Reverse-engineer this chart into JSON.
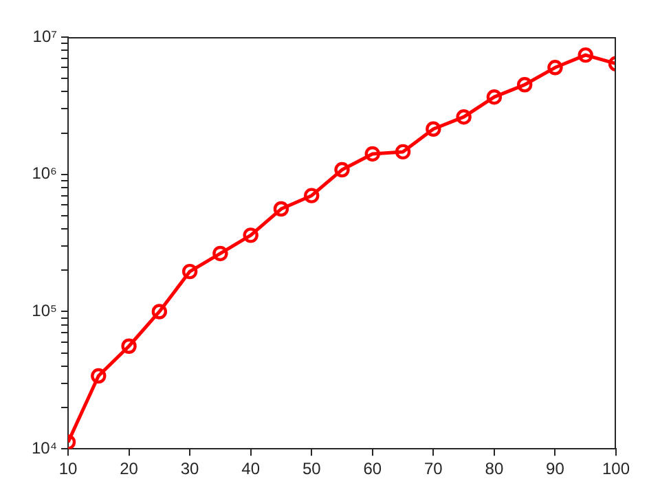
{
  "chart_data": {
    "type": "line",
    "x": [
      10,
      15,
      20,
      25,
      30,
      35,
      40,
      45,
      50,
      55,
      60,
      65,
      70,
      75,
      80,
      85,
      90,
      95,
      100
    ],
    "series": [
      {
        "color": "#ff0000",
        "values": [
          11200,
          34000,
          56000,
          100000,
          196000,
          265000,
          360000,
          560000,
          700000,
          1080000,
          1410000,
          1460000,
          2140000,
          2620000,
          3660000,
          4500000,
          6000000,
          7400000,
          6400000
        ]
      }
    ],
    "xlim": [
      10,
      100
    ],
    "xticks": [
      10,
      20,
      30,
      40,
      50,
      60,
      70,
      80,
      90,
      100
    ],
    "ylim": [
      10000,
      10000000
    ],
    "log": "y",
    "yticks": [
      {
        "value": 10000,
        "label": "10⁴"
      },
      {
        "value": 20000,
        "label": null
      },
      {
        "value": 30000,
        "label": null
      },
      {
        "value": 40000,
        "label": null
      },
      {
        "value": 50000,
        "label": null
      },
      {
        "value": 60000,
        "label": null
      },
      {
        "value": 70000,
        "label": null
      },
      {
        "value": 80000,
        "label": null
      },
      {
        "value": 90000,
        "label": null
      },
      {
        "value": 100000,
        "label": "10⁵"
      },
      {
        "value": 200000,
        "label": null
      },
      {
        "value": 300000,
        "label": null
      },
      {
        "value": 400000,
        "label": null
      },
      {
        "value": 500000,
        "label": null
      },
      {
        "value": 600000,
        "label": null
      },
      {
        "value": 700000,
        "label": null
      },
      {
        "value": 800000,
        "label": null
      },
      {
        "value": 900000,
        "label": null
      },
      {
        "value": 1000000,
        "label": "10⁶"
      },
      {
        "value": 2000000,
        "label": null
      },
      {
        "value": 3000000,
        "label": null
      },
      {
        "value": 4000000,
        "label": null
      },
      {
        "value": 5000000,
        "label": null
      },
      {
        "value": 6000000,
        "label": null
      },
      {
        "value": 7000000,
        "label": null
      },
      {
        "value": 8000000,
        "label": null
      },
      {
        "value": 9000000,
        "label": null
      },
      {
        "value": 10000000,
        "label": "10⁷"
      }
    ],
    "grid": false,
    "legend": false,
    "marker": "circle",
    "line_style": "solid"
  }
}
